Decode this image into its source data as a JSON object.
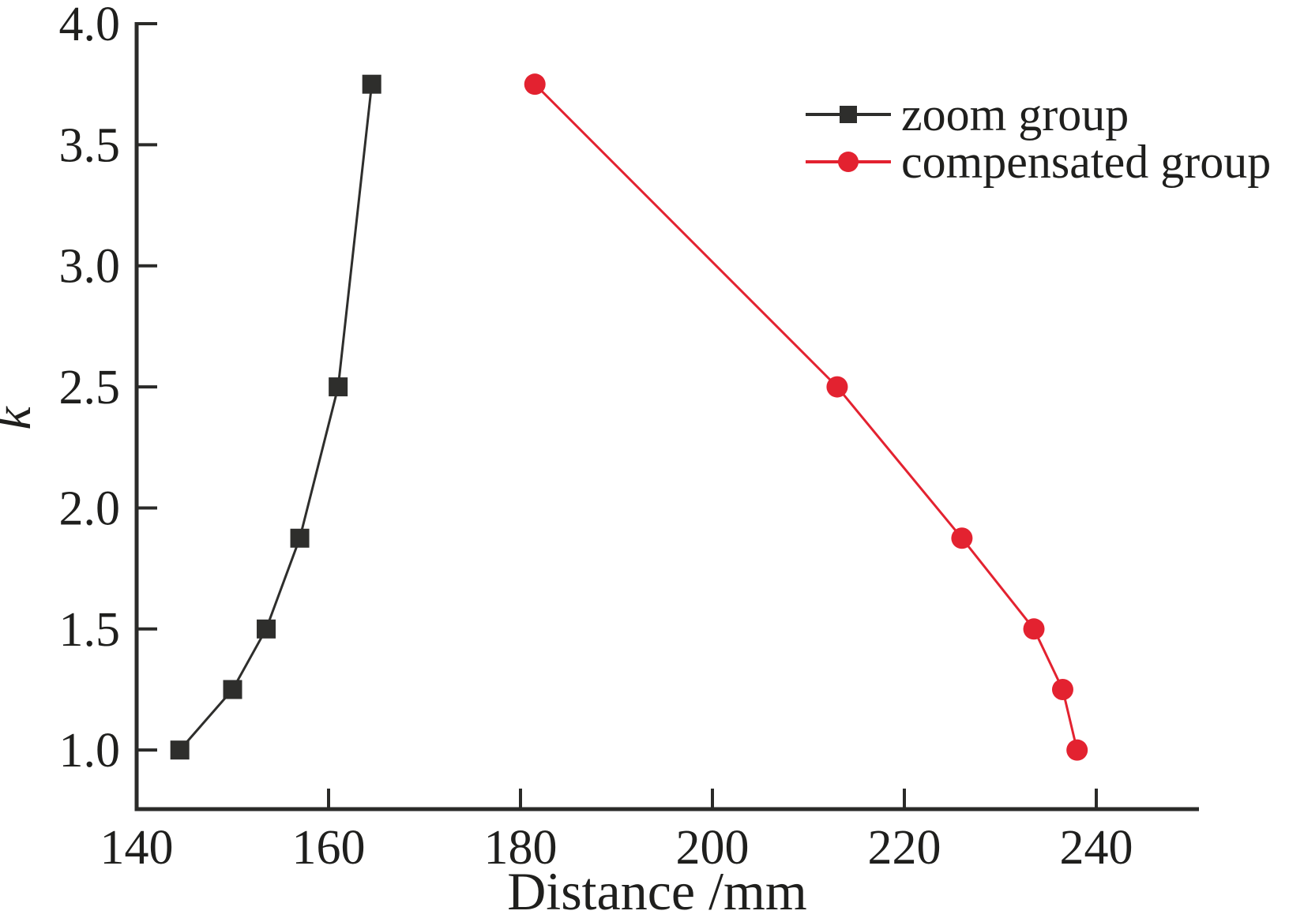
{
  "figure": {
    "background": "#ffffff",
    "axis_color": "#2a2a28",
    "text_color": "#1f1f1d"
  },
  "chart_data": {
    "type": "line",
    "title": "",
    "xlabel": "Distance /mm",
    "ylabel": "k",
    "xlim": [
      140,
      250.7
    ],
    "ylim": [
      0.756,
      4.0
    ],
    "grid": false,
    "legend_position": "upper right",
    "xticks": {
      "values": [
        140,
        160,
        180,
        200,
        220,
        240
      ],
      "labels": [
        "140",
        "160",
        "180",
        "200",
        "220",
        "240"
      ]
    },
    "yticks": {
      "values": [
        1.0,
        1.5,
        2.0,
        2.5,
        3.0,
        3.5,
        4.0
      ],
      "labels": [
        "1.0",
        "1.5",
        "2.0",
        "2.5",
        "3.0",
        "3.5",
        "4.0"
      ]
    },
    "series": [
      {
        "name": "zoom group",
        "color": "#2e2e2c",
        "marker": "square",
        "points": [
          [
            144.5,
            1.0
          ],
          [
            150,
            1.25
          ],
          [
            153.5,
            1.5
          ],
          [
            157,
            1.875
          ],
          [
            161,
            2.5
          ],
          [
            164.5,
            3.75
          ]
        ]
      },
      {
        "name": "compensated group",
        "color": "#e32230",
        "marker": "circle",
        "points": [
          [
            181.5,
            3.75
          ],
          [
            213,
            2.5
          ],
          [
            226,
            1.875
          ],
          [
            233.5,
            1.5
          ],
          [
            236.5,
            1.25
          ],
          [
            238,
            1.0
          ]
        ]
      }
    ]
  }
}
